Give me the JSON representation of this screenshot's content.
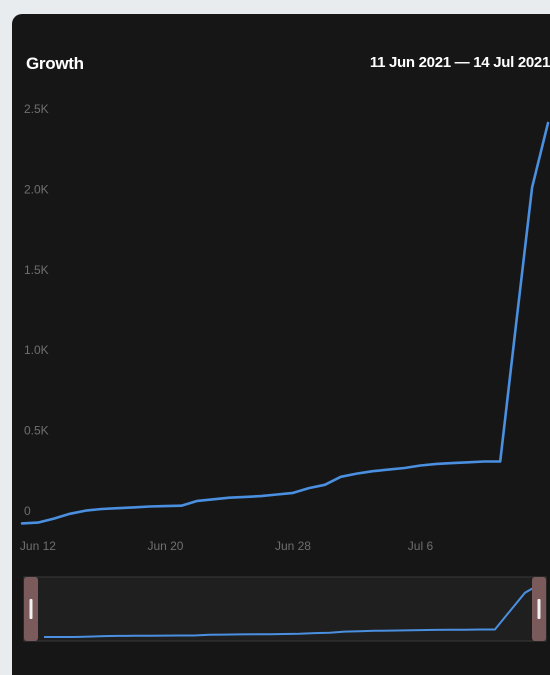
{
  "header": {
    "title": "Growth",
    "date_range": "11 Jun 2021 — 14 Jul 2021"
  },
  "colors": {
    "background": "#161616",
    "line": "#4a8fe0",
    "tick_text": "#6f6f6f",
    "navigator_handle": "#7a5a5a"
  },
  "chart_data": {
    "type": "line",
    "title": "Growth",
    "subtitle": "11 Jun 2021 — 14 Jul 2021",
    "xlabel": "",
    "ylabel": "",
    "ylim": [
      0,
      2500
    ],
    "grid": false,
    "y_ticks": [
      "0",
      "0.5K",
      "1.0K",
      "1.5K",
      "2.0K",
      "2.5K"
    ],
    "y_tick_values": [
      0,
      500,
      1000,
      1500,
      2000,
      2500
    ],
    "x_ticks": [
      "Jun 12",
      "Jun 20",
      "Jun 28",
      "Jul 6"
    ],
    "x_tick_values": [
      "2021-06-12",
      "2021-06-20",
      "2021-06-28",
      "2021-07-06"
    ],
    "x": [
      "2021-06-11",
      "2021-06-12",
      "2021-06-13",
      "2021-06-14",
      "2021-06-15",
      "2021-06-16",
      "2021-06-17",
      "2021-06-18",
      "2021-06-19",
      "2021-06-20",
      "2021-06-21",
      "2021-06-22",
      "2021-06-23",
      "2021-06-24",
      "2021-06-25",
      "2021-06-26",
      "2021-06-27",
      "2021-06-28",
      "2021-06-29",
      "2021-06-30",
      "2021-07-01",
      "2021-07-02",
      "2021-07-03",
      "2021-07-04",
      "2021-07-05",
      "2021-07-06",
      "2021-07-07",
      "2021-07-08",
      "2021-07-09",
      "2021-07-10",
      "2021-07-11",
      "2021-07-12",
      "2021-07-13",
      "2021-07-14"
    ],
    "series": [
      {
        "values": [
          -40,
          -35,
          -10,
          20,
          40,
          50,
          55,
          60,
          65,
          68,
          70,
          100,
          110,
          120,
          125,
          130,
          140,
          150,
          180,
          200,
          250,
          270,
          285,
          295,
          305,
          320,
          330,
          335,
          340,
          345,
          345,
          1200,
          2050,
          2450
        ]
      }
    ],
    "navigator": {
      "visible": true
    }
  }
}
